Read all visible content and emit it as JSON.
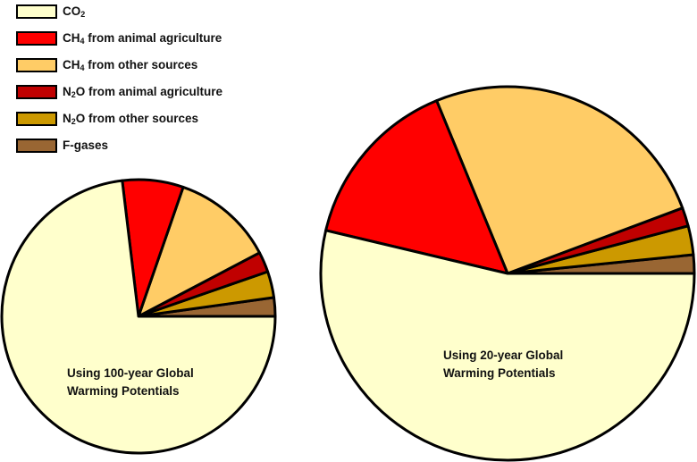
{
  "chart_data": [
    {
      "type": "pie",
      "title": "Using 100-year Global Warming Potentials",
      "caption_lines": [
        "Using 100-year Global",
        "Warming Potentials"
      ],
      "start_angle_deg": 0,
      "direction": "counterclockwise",
      "center": [
        155,
        354
      ],
      "radius": 153,
      "slices": [
        {
          "label": "F-gases",
          "value": 2.2
        },
        {
          "label": "N2O from other sources",
          "value": 3.1
        },
        {
          "label": "N2O from animal agriculture",
          "value": 2.4
        },
        {
          "label": "CH4 from other sources",
          "value": 12.0
        },
        {
          "label": "CH4 from animal agriculture",
          "value": 7.2
        },
        {
          "label": "CO2",
          "value": 73.1
        }
      ]
    },
    {
      "type": "pie",
      "title": "Using 20-year Global Warming Potentials",
      "caption_lines": [
        "Using 20-year Global",
        "Warming Potentials"
      ],
      "start_angle_deg": 0,
      "direction": "counterclockwise",
      "center": [
        568,
        306
      ],
      "radius": 209,
      "slices": [
        {
          "label": "F-gases",
          "value": 1.6
        },
        {
          "label": "N2O from other sources",
          "value": 2.5
        },
        {
          "label": "N2O from animal agriculture",
          "value": 1.6
        },
        {
          "label": "CH4 from other sources",
          "value": 25.5
        },
        {
          "label": "CH4 from animal agriculture",
          "value": 15.1
        },
        {
          "label": "CO2",
          "value": 53.7
        }
      ]
    }
  ],
  "legend": {
    "position": "top-left",
    "items": [
      {
        "key": "CO2",
        "base": "CO",
        "sub": "2",
        "rest": "",
        "color": "#FFFFCC"
      },
      {
        "key": "CH4 from animal agriculture",
        "base": "CH",
        "sub": "4",
        "rest": " from animal agriculture",
        "color": "#FF0000"
      },
      {
        "key": "CH4 from other sources",
        "base": "CH",
        "sub": "4",
        "rest": " from other sources",
        "color": "#FFCC66"
      },
      {
        "key": "N2O from animal agriculture",
        "base": "N",
        "sub": "2",
        "rest": "O from animal agriculture",
        "color": "#C00000"
      },
      {
        "key": "N2O from other sources",
        "base": "N",
        "sub": "2",
        "rest": "O from other sources",
        "color": "#CC9900"
      },
      {
        "key": "F-gases",
        "base": "F-gases",
        "sub": "",
        "rest": "",
        "color": "#996633"
      }
    ]
  },
  "captions": {
    "small": {
      "line1": "Using 100-year Global",
      "line2": "Warming Potentials"
    },
    "large": {
      "line1": "Using 20-year Global",
      "line2": "Warming Potentials"
    }
  }
}
